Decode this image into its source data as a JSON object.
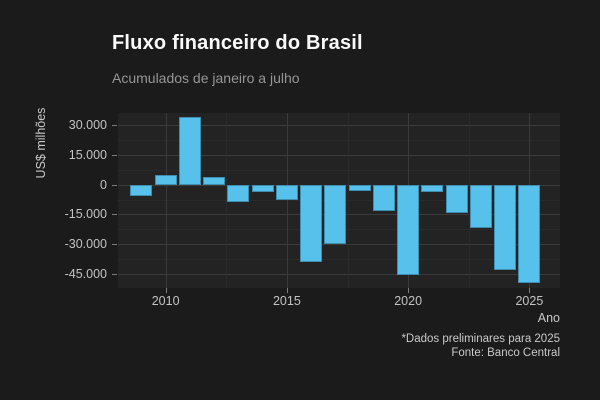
{
  "header": {
    "title": "Fluxo financeiro do Brasil",
    "subtitle": "Acumulados de janeiro a julho"
  },
  "caption": {
    "line1": "*Dados preliminares para 2025",
    "line2": "Fonte: Banco Central"
  },
  "chart_data": {
    "type": "bar",
    "title": "Fluxo financeiro do Brasil",
    "subtitle": "Acumulados de janeiro a julho",
    "xlabel": "Ano",
    "ylabel": "US$ milhões",
    "categories": [
      2009,
      2010,
      2011,
      2012,
      2013,
      2014,
      2015,
      2016,
      2017,
      2018,
      2019,
      2020,
      2021,
      2022,
      2023,
      2024,
      2025
    ],
    "values": [
      -5700,
      4900,
      34000,
      3900,
      -8800,
      -3800,
      -7900,
      -39000,
      -30000,
      -3400,
      -13500,
      -45400,
      -3800,
      -14400,
      -22000,
      -43000,
      -49500
    ],
    "ylim": [
      -52000,
      36400
    ],
    "y_ticks": [
      {
        "value": 30000,
        "label": "30.000"
      },
      {
        "value": 15000,
        "label": "15.000"
      },
      {
        "value": 0,
        "label": "0"
      },
      {
        "value": -15000,
        "label": "-15.000"
      },
      {
        "value": -30000,
        "label": "-30.000"
      },
      {
        "value": -45000,
        "label": "-45.000"
      }
    ],
    "y_minor_ticks": [
      22500,
      7500,
      -7500,
      -22500,
      -37500
    ],
    "x_ticks": [
      {
        "value": 2010,
        "label": "2010"
      },
      {
        "value": 2015,
        "label": "2015"
      },
      {
        "value": 2020,
        "label": "2020"
      },
      {
        "value": 2025,
        "label": "2025"
      }
    ],
    "x_minor_ticks": [
      2012.5,
      2017.5,
      2022.5
    ],
    "grid": "major+minor horizontal and vertical",
    "legend": "none",
    "bar_color": "#57c1ec",
    "bar_border_color": "#3e8cb0",
    "background_color": "#1b1b1b",
    "panel_color": "#232323"
  }
}
